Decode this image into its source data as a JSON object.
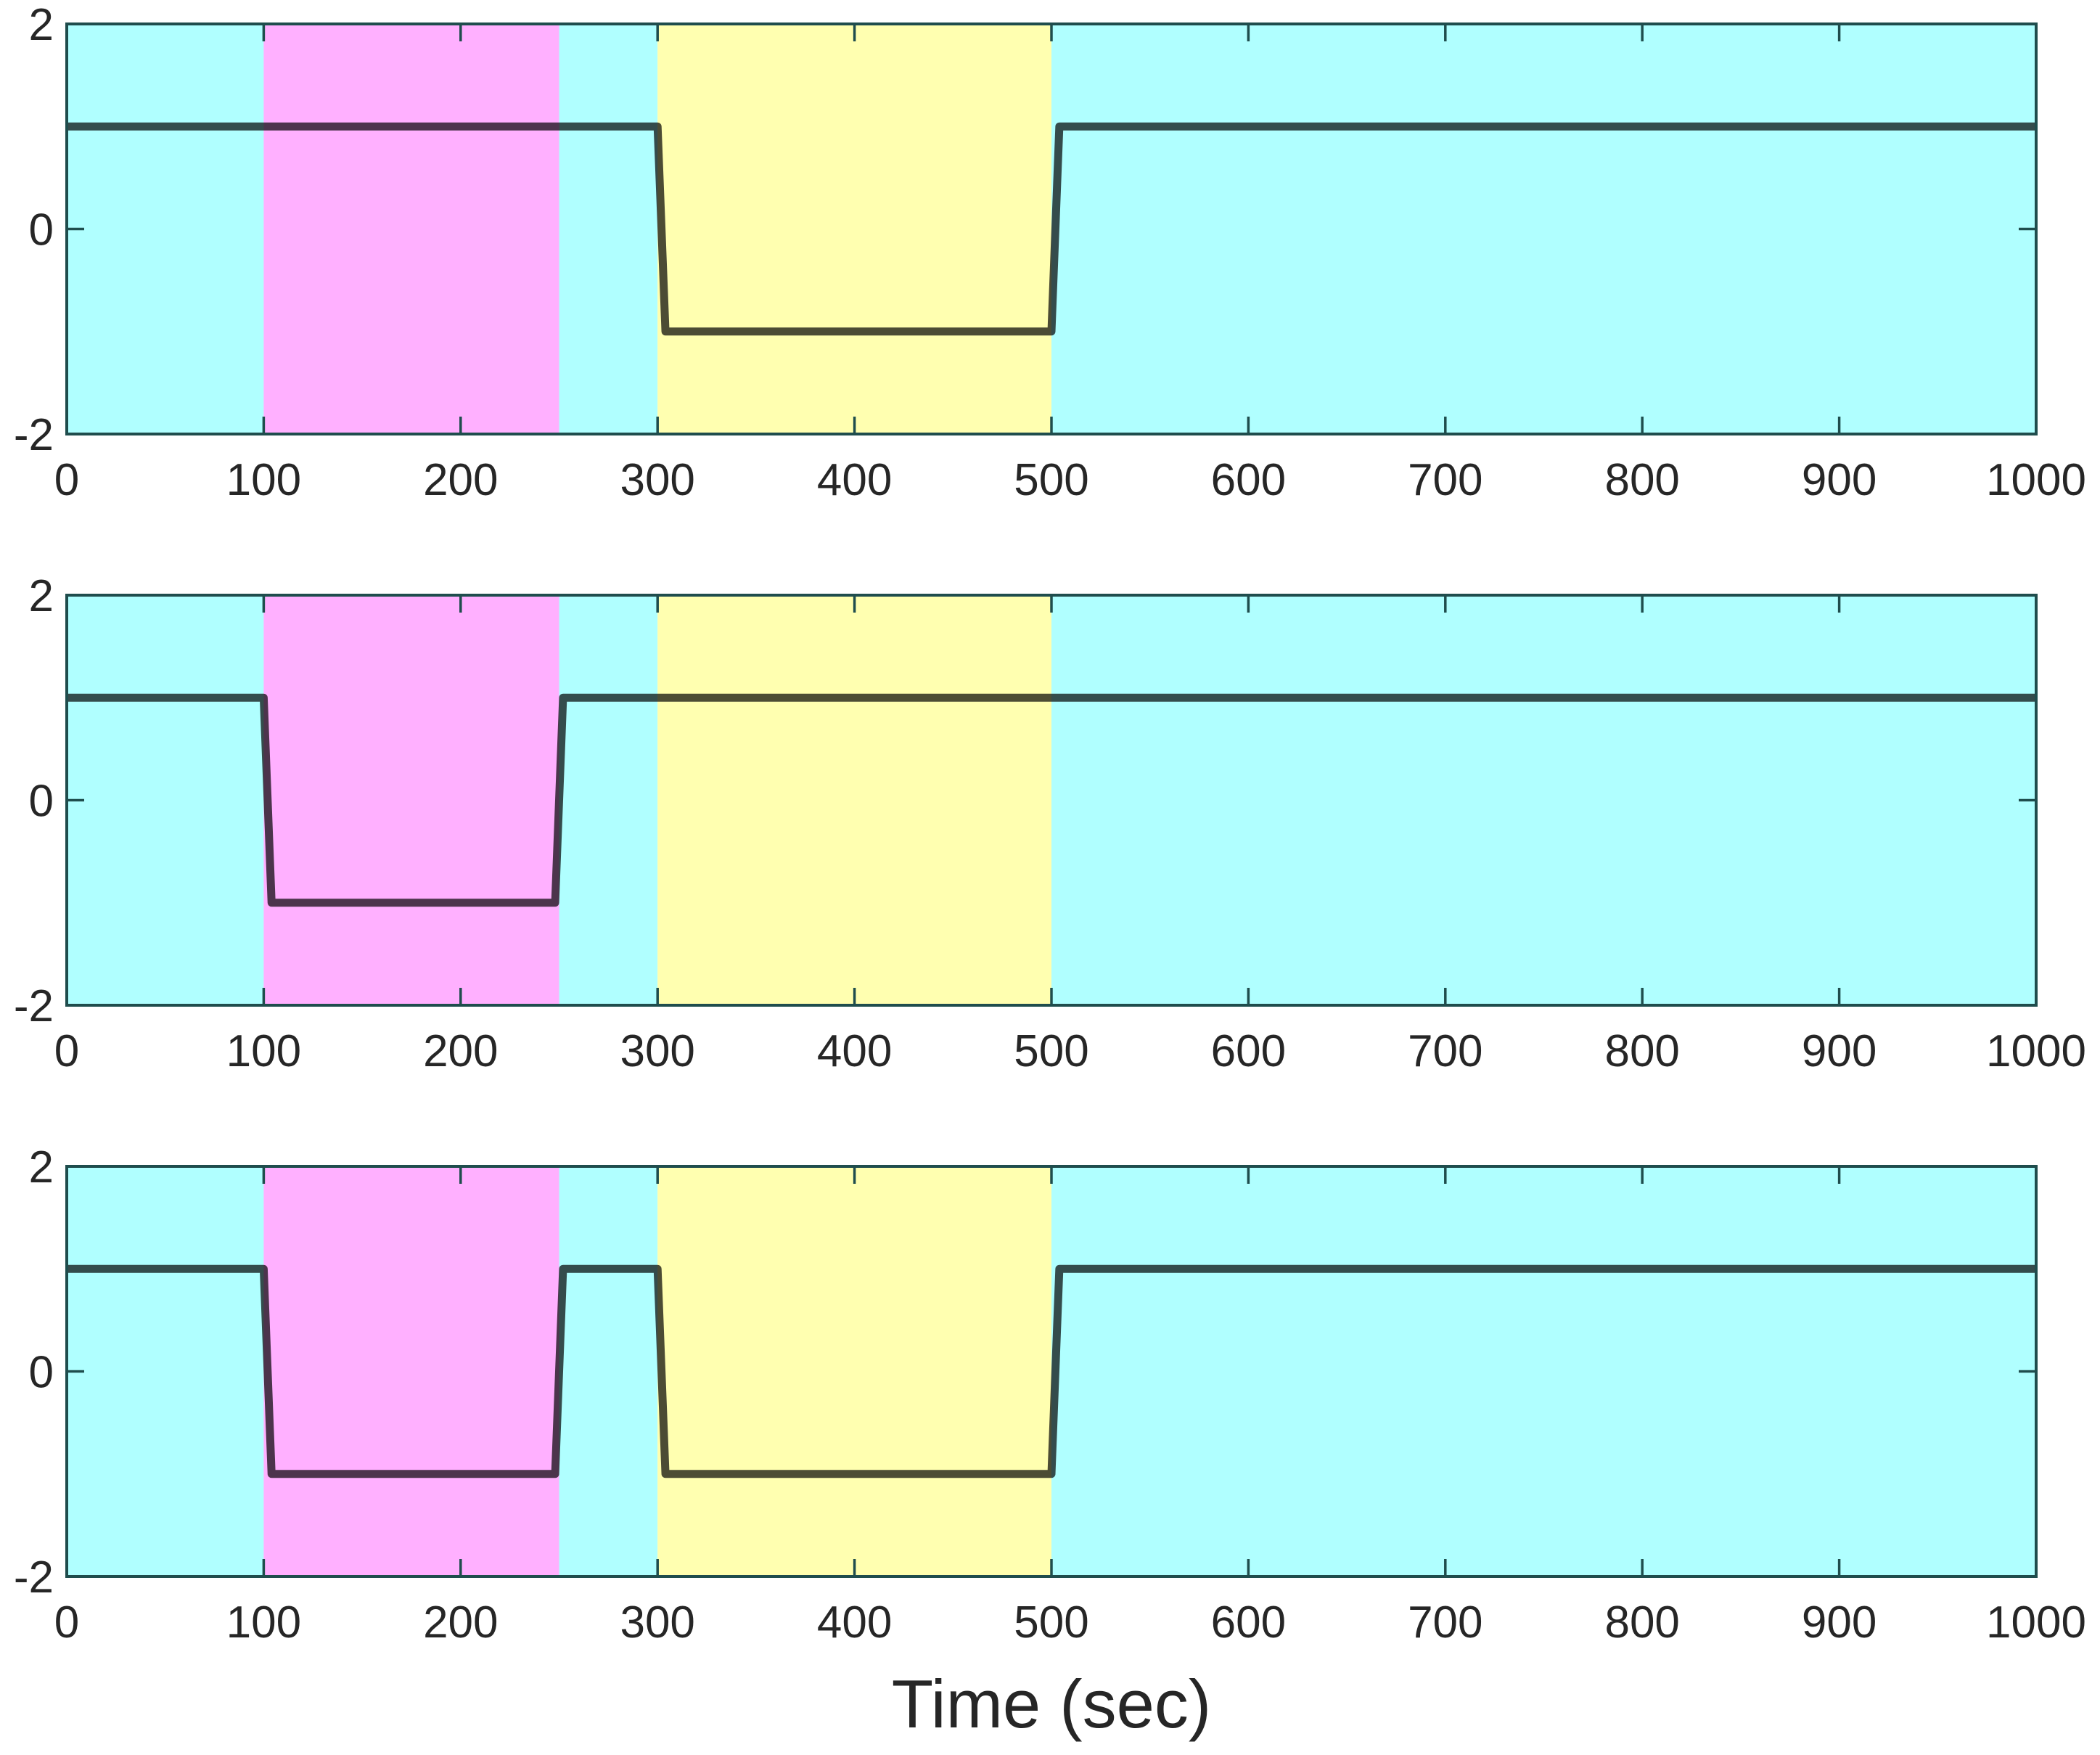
{
  "chart_data": [
    {
      "type": "line",
      "xlim": [
        0,
        1000
      ],
      "ylim": [
        -2,
        2
      ],
      "xticks": [
        0,
        100,
        200,
        300,
        400,
        500,
        600,
        700,
        800,
        900,
        1000
      ],
      "yticks": [
        -2,
        0,
        2
      ],
      "xtick_labels": [
        "0",
        "100",
        "200",
        "300",
        "400",
        "500",
        "600",
        "700",
        "800",
        "900",
        "1000"
      ],
      "ytick_labels": [
        "-2",
        "0",
        "2"
      ],
      "xlabel": "",
      "grid": false,
      "shaded_regions": [
        {
          "x0": 0,
          "x1": 100,
          "color": "#b0ffff"
        },
        {
          "x0": 100,
          "x1": 250,
          "color": "#ffb0ff"
        },
        {
          "x0": 250,
          "x1": 300,
          "color": "#b0ffff"
        },
        {
          "x0": 300,
          "x1": 500,
          "color": "#ffffb0"
        },
        {
          "x0": 500,
          "x1": 1000,
          "color": "#b0ffff"
        }
      ],
      "series": [
        {
          "x": [
            0,
            300,
            304,
            500,
            504,
            1000
          ],
          "y": [
            1,
            1,
            -1,
            -1,
            1,
            1
          ],
          "color": "#000000"
        }
      ]
    },
    {
      "type": "line",
      "xlim": [
        0,
        1000
      ],
      "ylim": [
        -2,
        2
      ],
      "xticks": [
        0,
        100,
        200,
        300,
        400,
        500,
        600,
        700,
        800,
        900,
        1000
      ],
      "yticks": [
        -2,
        0,
        2
      ],
      "xtick_labels": [
        "0",
        "100",
        "200",
        "300",
        "400",
        "500",
        "600",
        "700",
        "800",
        "900",
        "1000"
      ],
      "ytick_labels": [
        "-2",
        "0",
        "2"
      ],
      "xlabel": "",
      "grid": false,
      "shaded_regions": [
        {
          "x0": 0,
          "x1": 100,
          "color": "#b0ffff"
        },
        {
          "x0": 100,
          "x1": 250,
          "color": "#ffb0ff"
        },
        {
          "x0": 250,
          "x1": 300,
          "color": "#b0ffff"
        },
        {
          "x0": 300,
          "x1": 500,
          "color": "#ffffb0"
        },
        {
          "x0": 500,
          "x1": 1000,
          "color": "#b0ffff"
        }
      ],
      "series": [
        {
          "x": [
            0,
            100,
            104,
            248,
            252,
            1000
          ],
          "y": [
            1,
            1,
            -1,
            -1,
            1,
            1
          ],
          "color": "#000000"
        }
      ]
    },
    {
      "type": "line",
      "xlim": [
        0,
        1000
      ],
      "ylim": [
        -2,
        2
      ],
      "xticks": [
        0,
        100,
        200,
        300,
        400,
        500,
        600,
        700,
        800,
        900,
        1000
      ],
      "yticks": [
        -2,
        0,
        2
      ],
      "xtick_labels": [
        "0",
        "100",
        "200",
        "300",
        "400",
        "500",
        "600",
        "700",
        "800",
        "900",
        "1000"
      ],
      "ytick_labels": [
        "-2",
        "0",
        "2"
      ],
      "xlabel": "Time (sec)",
      "grid": false,
      "shaded_regions": [
        {
          "x0": 0,
          "x1": 100,
          "color": "#b0ffff"
        },
        {
          "x0": 100,
          "x1": 250,
          "color": "#ffb0ff"
        },
        {
          "x0": 250,
          "x1": 300,
          "color": "#b0ffff"
        },
        {
          "x0": 300,
          "x1": 500,
          "color": "#ffffb0"
        },
        {
          "x0": 500,
          "x1": 1000,
          "color": "#b0ffff"
        }
      ],
      "series": [
        {
          "x": [
            0,
            100,
            104,
            248,
            252,
            300,
            304,
            500,
            504,
            1000
          ],
          "y": [
            1,
            1,
            -1,
            -1,
            1,
            1,
            -1,
            -1,
            1,
            1
          ],
          "color": "#000000"
        }
      ]
    }
  ]
}
